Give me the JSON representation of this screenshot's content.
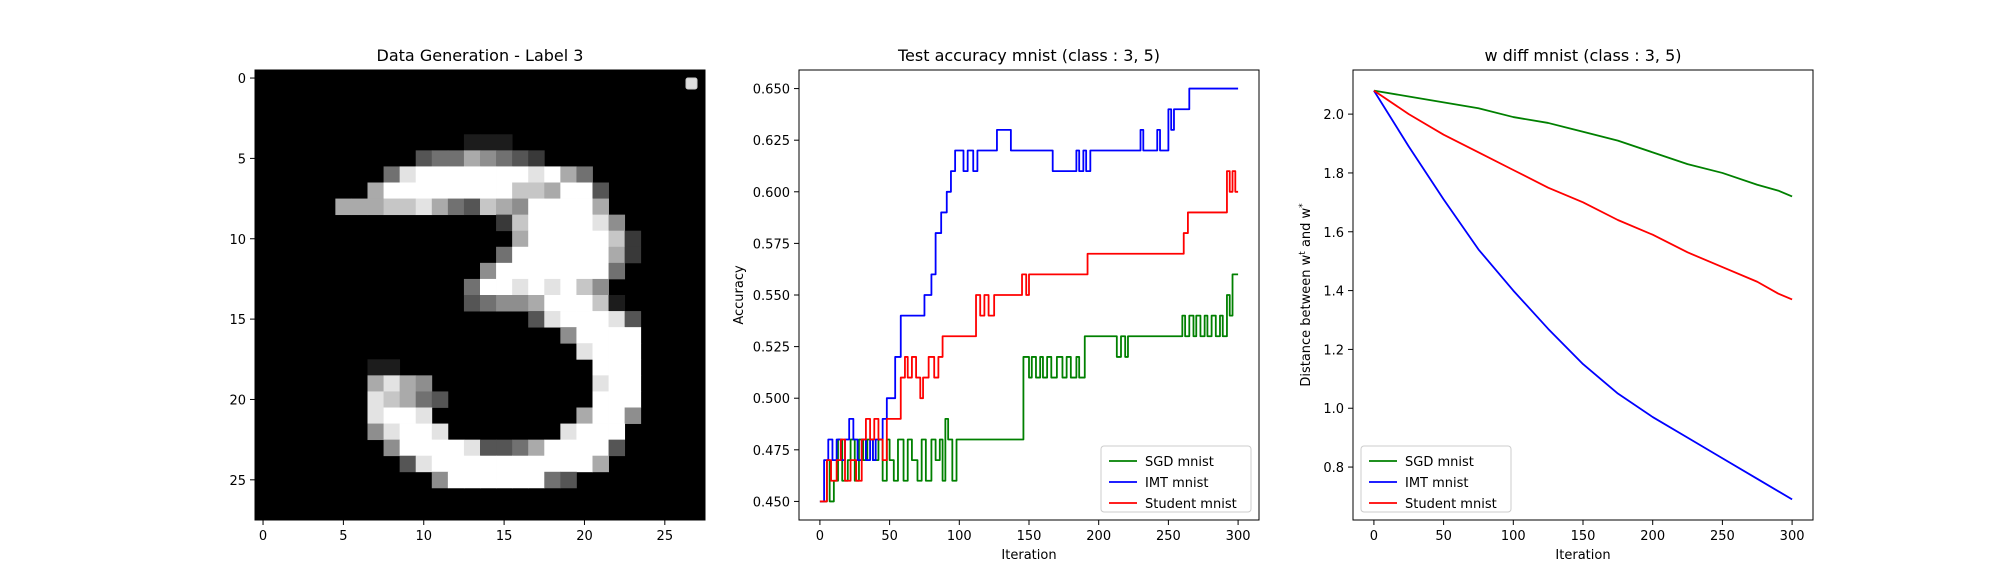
{
  "chart_data": [
    {
      "type": "heatmap",
      "title": "Data Generation - Label 3",
      "xlabel": "",
      "ylabel": "",
      "xlim": [
        -0.5,
        27.5
      ],
      "ylim": [
        27.5,
        -0.5
      ],
      "xticks": [
        0,
        5,
        10,
        15,
        20,
        25
      ],
      "yticks": [
        0,
        5,
        10,
        15,
        20,
        25
      ],
      "colormap": "gray",
      "legend": {
        "placement": "top-right",
        "entries": []
      },
      "rows": [
        "0000000000000000000000000000",
        "0000000000000000000000000000",
        "0000000000000000000000000000",
        "0000000000000000000000000000",
        "0000000000000111000000000000",
        "0000000000344654320000000000",
        "0000000048999999989640000000",
        "0000000699999999776993000000",
        "0000066677864376599996000000",
        "0000000000000002799998500000",
        "0000000000000000699999720000",
        "0000000000000004999999620000",
        "0000000000000059999999400000",
        "0000000000000499898975000000",
        "0000000000000345569997100000",
        "0000000000000000038999830000",
        "0000000000000000000599990000",
        "0000000000000000000089990000",
        "0000000110000000000009990000",
        "0000000686500000000008990000",
        "0000000876430000000009990000",
        "0000000899800000000069950000",
        "0000000589980000000899900000",
        "0000000059999833469999300000",
        "0000000003899999999996000000",
        "0000000000059999994300000000",
        "0000000000000000000000000000",
        "0000000000000000000000000000"
      ]
    },
    {
      "type": "line",
      "title": "Test accuracy mnist (class : 3, 5)",
      "xlabel": "Iteration",
      "ylabel": "Accuracy",
      "xlim": [
        -15,
        315
      ],
      "ylim": [
        0.441,
        0.659
      ],
      "xticks": [
        0,
        50,
        100,
        150,
        200,
        250,
        300
      ],
      "yticks": [
        0.45,
        0.475,
        0.5,
        0.525,
        0.55,
        0.575,
        0.6,
        0.625,
        0.65
      ],
      "ytick_labels": [
        "0.450",
        "0.475",
        "0.500",
        "0.525",
        "0.550",
        "0.575",
        "0.600",
        "0.625",
        "0.650"
      ],
      "legend": {
        "placement": "bottom-right"
      },
      "series": [
        {
          "name": "SGD mnist",
          "color": "#008000",
          "points": [
            [
              0,
              0.45
            ],
            [
              5,
              0.47
            ],
            [
              7,
              0.45
            ],
            [
              10,
              0.46
            ],
            [
              13,
              0.48
            ],
            [
              16,
              0.46
            ],
            [
              20,
              0.47
            ],
            [
              22,
              0.48
            ],
            [
              25,
              0.46
            ],
            [
              28,
              0.48
            ],
            [
              31,
              0.47
            ],
            [
              34,
              0.48
            ],
            [
              38,
              0.47
            ],
            [
              42,
              0.48
            ],
            [
              45,
              0.46
            ],
            [
              48,
              0.48
            ],
            [
              50,
              0.47
            ],
            [
              53,
              0.46
            ],
            [
              56,
              0.48
            ],
            [
              60,
              0.46
            ],
            [
              63,
              0.48
            ],
            [
              66,
              0.47
            ],
            [
              70,
              0.46
            ],
            [
              73,
              0.48
            ],
            [
              76,
              0.46
            ],
            [
              80,
              0.48
            ],
            [
              83,
              0.47
            ],
            [
              86,
              0.48
            ],
            [
              88,
              0.46
            ],
            [
              90,
              0.49
            ],
            [
              92,
              0.48
            ],
            [
              95,
              0.46
            ],
            [
              98,
              0.48
            ],
            [
              145,
              0.48
            ],
            [
              146,
              0.52
            ],
            [
              150,
              0.51
            ],
            [
              152,
              0.52
            ],
            [
              155,
              0.51
            ],
            [
              158,
              0.52
            ],
            [
              160,
              0.51
            ],
            [
              163,
              0.52
            ],
            [
              166,
              0.51
            ],
            [
              170,
              0.52
            ],
            [
              174,
              0.51
            ],
            [
              177,
              0.52
            ],
            [
              180,
              0.51
            ],
            [
              184,
              0.52
            ],
            [
              186,
              0.51
            ],
            [
              190,
              0.53
            ],
            [
              212,
              0.53
            ],
            [
              213,
              0.52
            ],
            [
              216,
              0.53
            ],
            [
              219,
              0.52
            ],
            [
              221,
              0.53
            ],
            [
              258,
              0.53
            ],
            [
              260,
              0.54
            ],
            [
              262,
              0.53
            ],
            [
              265,
              0.54
            ],
            [
              268,
              0.53
            ],
            [
              270,
              0.54
            ],
            [
              273,
              0.53
            ],
            [
              276,
              0.54
            ],
            [
              278,
              0.53
            ],
            [
              281,
              0.54
            ],
            [
              284,
              0.53
            ],
            [
              287,
              0.54
            ],
            [
              289,
              0.53
            ],
            [
              292,
              0.55
            ],
            [
              294,
              0.54
            ],
            [
              296,
              0.56
            ],
            [
              300,
              0.56
            ]
          ]
        },
        {
          "name": "IMT mnist",
          "color": "#0000ff",
          "points": [
            [
              0,
              0.45
            ],
            [
              3,
              0.47
            ],
            [
              6,
              0.48
            ],
            [
              9,
              0.47
            ],
            [
              12,
              0.48
            ],
            [
              15,
              0.47
            ],
            [
              18,
              0.48
            ],
            [
              21,
              0.49
            ],
            [
              24,
              0.48
            ],
            [
              27,
              0.47
            ],
            [
              30,
              0.48
            ],
            [
              33,
              0.47
            ],
            [
              36,
              0.48
            ],
            [
              38,
              0.47
            ],
            [
              40,
              0.48
            ],
            [
              45,
              0.49
            ],
            [
              48,
              0.5
            ],
            [
              52,
              0.5
            ],
            [
              54,
              0.52
            ],
            [
              58,
              0.54
            ],
            [
              73,
              0.54
            ],
            [
              75,
              0.55
            ],
            [
              78,
              0.55
            ],
            [
              80,
              0.56
            ],
            [
              83,
              0.58
            ],
            [
              87,
              0.59
            ],
            [
              91,
              0.6
            ],
            [
              94,
              0.61
            ],
            [
              97,
              0.62
            ],
            [
              100,
              0.62
            ],
            [
              103,
              0.61
            ],
            [
              106,
              0.62
            ],
            [
              110,
              0.61
            ],
            [
              113,
              0.62
            ],
            [
              125,
              0.62
            ],
            [
              127,
              0.63
            ],
            [
              135,
              0.63
            ],
            [
              137,
              0.62
            ],
            [
              165,
              0.62
            ],
            [
              167,
              0.61
            ],
            [
              182,
              0.61
            ],
            [
              184,
              0.62
            ],
            [
              186,
              0.61
            ],
            [
              189,
              0.62
            ],
            [
              191,
              0.61
            ],
            [
              194,
              0.62
            ],
            [
              228,
              0.62
            ],
            [
              230,
              0.63
            ],
            [
              232,
              0.62
            ],
            [
              240,
              0.62
            ],
            [
              242,
              0.63
            ],
            [
              244,
              0.62
            ],
            [
              248,
              0.62
            ],
            [
              250,
              0.64
            ],
            [
              252,
              0.63
            ],
            [
              254,
              0.64
            ],
            [
              263,
              0.64
            ],
            [
              265,
              0.65
            ],
            [
              300,
              0.65
            ]
          ]
        },
        {
          "name": "Student mnist",
          "color": "#ff0000",
          "points": [
            [
              0,
              0.45
            ],
            [
              5,
              0.47
            ],
            [
              8,
              0.46
            ],
            [
              12,
              0.47
            ],
            [
              15,
              0.48
            ],
            [
              18,
              0.46
            ],
            [
              22,
              0.47
            ],
            [
              26,
              0.46
            ],
            [
              30,
              0.48
            ],
            [
              33,
              0.49
            ],
            [
              36,
              0.48
            ],
            [
              39,
              0.49
            ],
            [
              42,
              0.48
            ],
            [
              45,
              0.47
            ],
            [
              48,
              0.49
            ],
            [
              56,
              0.49
            ],
            [
              58,
              0.51
            ],
            [
              61,
              0.52
            ],
            [
              63,
              0.51
            ],
            [
              66,
              0.52
            ],
            [
              69,
              0.51
            ],
            [
              72,
              0.5
            ],
            [
              74,
              0.51
            ],
            [
              78,
              0.52
            ],
            [
              82,
              0.51
            ],
            [
              85,
              0.52
            ],
            [
              88,
              0.53
            ],
            [
              110,
              0.53
            ],
            [
              112,
              0.55
            ],
            [
              115,
              0.54
            ],
            [
              118,
              0.55
            ],
            [
              121,
              0.54
            ],
            [
              125,
              0.55
            ],
            [
              143,
              0.55
            ],
            [
              145,
              0.56
            ],
            [
              148,
              0.55
            ],
            [
              150,
              0.56
            ],
            [
              190,
              0.56
            ],
            [
              192,
              0.57
            ],
            [
              260,
              0.57
            ],
            [
              261,
              0.58
            ],
            [
              264,
              0.59
            ],
            [
              290,
              0.59
            ],
            [
              292,
              0.61
            ],
            [
              294,
              0.6
            ],
            [
              296,
              0.61
            ],
            [
              298,
              0.6
            ],
            [
              300,
              0.6
            ]
          ]
        }
      ]
    },
    {
      "type": "line",
      "title": "w diff mnist (class : 3, 5)",
      "xlabel": "Iteration",
      "ylabel": "Distance between w^t and w^*",
      "xlim": [
        -15,
        315
      ],
      "ylim": [
        0.62,
        2.15
      ],
      "xticks": [
        0,
        50,
        100,
        150,
        200,
        250,
        300
      ],
      "yticks": [
        0.8,
        1.0,
        1.2,
        1.4,
        1.6,
        1.8,
        2.0
      ],
      "ytick_labels": [
        "0.8",
        "1.0",
        "1.2",
        "1.4",
        "1.6",
        "1.8",
        "2.0"
      ],
      "legend": {
        "placement": "bottom-left"
      },
      "series": [
        {
          "name": "SGD mnist",
          "color": "#008000",
          "points": [
            [
              0,
              2.08
            ],
            [
              25,
              2.06
            ],
            [
              50,
              2.04
            ],
            [
              75,
              2.02
            ],
            [
              100,
              1.99
            ],
            [
              125,
              1.97
            ],
            [
              150,
              1.94
            ],
            [
              175,
              1.91
            ],
            [
              200,
              1.87
            ],
            [
              225,
              1.83
            ],
            [
              250,
              1.8
            ],
            [
              275,
              1.76
            ],
            [
              290,
              1.74
            ],
            [
              300,
              1.72
            ]
          ]
        },
        {
          "name": "IMT mnist",
          "color": "#0000ff",
          "points": [
            [
              0,
              2.08
            ],
            [
              25,
              1.89
            ],
            [
              50,
              1.71
            ],
            [
              75,
              1.54
            ],
            [
              100,
              1.4
            ],
            [
              125,
              1.27
            ],
            [
              150,
              1.15
            ],
            [
              175,
              1.05
            ],
            [
              200,
              0.97
            ],
            [
              225,
              0.9
            ],
            [
              250,
              0.83
            ],
            [
              275,
              0.76
            ],
            [
              300,
              0.69
            ]
          ]
        },
        {
          "name": "Student mnist",
          "color": "#ff0000",
          "points": [
            [
              0,
              2.08
            ],
            [
              25,
              2.0
            ],
            [
              50,
              1.93
            ],
            [
              75,
              1.87
            ],
            [
              100,
              1.81
            ],
            [
              125,
              1.75
            ],
            [
              150,
              1.7
            ],
            [
              175,
              1.64
            ],
            [
              200,
              1.59
            ],
            [
              225,
              1.53
            ],
            [
              250,
              1.48
            ],
            [
              275,
              1.43
            ],
            [
              290,
              1.39
            ],
            [
              300,
              1.37
            ]
          ]
        }
      ]
    }
  ]
}
